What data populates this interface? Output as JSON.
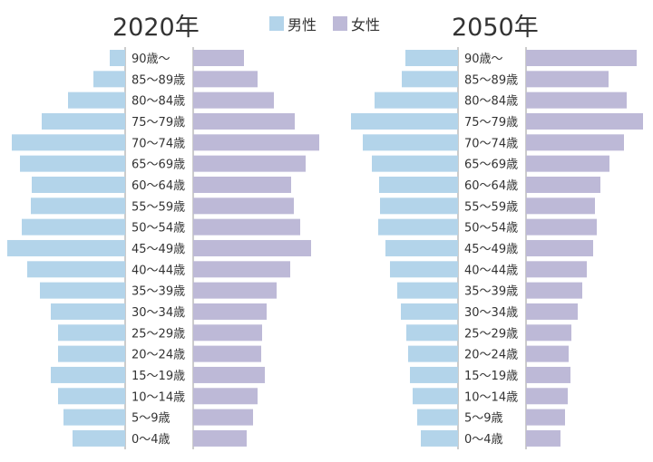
{
  "colors": {
    "male": "#b3d4ea",
    "female": "#bdb9d7",
    "axis": "#999999",
    "text": "#333333"
  },
  "legend": {
    "male_label": "男性",
    "female_label": "女性"
  },
  "chart_data": [
    {
      "type": "bar",
      "title": "2020年",
      "categories": [
        "90歳～",
        "85～89歳",
        "80～84歳",
        "75～79歳",
        "70～74歳",
        "65～69歳",
        "60～64歳",
        "55～59歳",
        "50～54歳",
        "45～49歳",
        "40～44歳",
        "35～39歳",
        "30～34歳",
        "25～29歳",
        "20～24歳",
        "15～19歳",
        "10～14歳",
        "5～9歳",
        "0～4歳"
      ],
      "series": [
        {
          "name": "男性",
          "values": [
            17,
            35,
            63,
            92,
            125,
            116,
            103,
            104,
            114,
            130,
            108,
            94,
            82,
            74,
            74,
            82,
            74,
            68,
            58
          ]
        },
        {
          "name": "女性",
          "values": [
            56,
            71,
            89,
            112,
            139,
            124,
            108,
            111,
            118,
            130,
            107,
            92,
            81,
            76,
            75,
            79,
            71,
            66,
            59
          ]
        }
      ]
    },
    {
      "type": "bar",
      "title": "2050年",
      "categories": [
        "90歳～",
        "85～89歳",
        "80～84歳",
        "75～79歳",
        "70～74歳",
        "65～69歳",
        "60～64歳",
        "55～59歳",
        "50～54歳",
        "45～49歳",
        "40～44歳",
        "35～39歳",
        "30～34歳",
        "25～29歳",
        "20～24歳",
        "15～19歳",
        "10～14歳",
        "5～9歳",
        "0～4歳"
      ],
      "series": [
        {
          "name": "男性",
          "values": [
            58,
            62,
            92,
            118,
            105,
            95,
            87,
            86,
            88,
            80,
            75,
            67,
            63,
            57,
            55,
            53,
            50,
            45,
            41
          ]
        },
        {
          "name": "女性",
          "values": [
            122,
            91,
            111,
            129,
            108,
            92,
            82,
            76,
            78,
            74,
            67,
            62,
            57,
            50,
            47,
            49,
            46,
            43,
            38
          ]
        }
      ]
    }
  ]
}
